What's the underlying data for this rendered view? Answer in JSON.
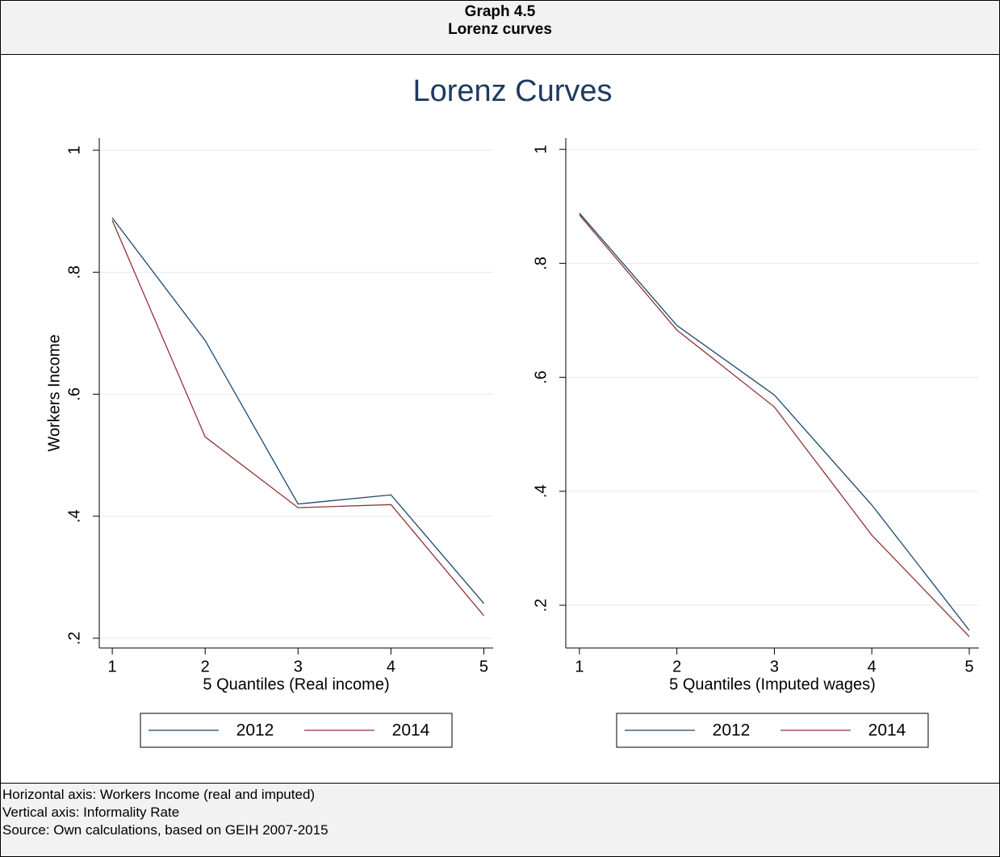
{
  "header": {
    "number": "Graph 4.5",
    "title": "Lorenz curves"
  },
  "figure_title": "Lorenz Curves",
  "chart_data": [
    {
      "type": "line",
      "ylabel": "Workers Income",
      "xlabel": "5 Quantiles (Real income)",
      "x": [
        1,
        2,
        3,
        4,
        5
      ],
      "series": [
        {
          "name": "2012",
          "color": "#1a476f",
          "values": [
            0.889,
            0.688,
            0.42,
            0.435,
            0.257
          ]
        },
        {
          "name": "2014",
          "color": "#90353b",
          "values": [
            0.885,
            0.53,
            0.414,
            0.419,
            0.237
          ]
        }
      ],
      "xlim": [
        0.86,
        5.1
      ],
      "xticks": [
        1,
        2,
        3,
        4,
        5
      ],
      "ylim": [
        0.184,
        1.02
      ],
      "yticks": [
        {
          "value": 0.2,
          "label": ".2"
        },
        {
          "value": 0.4,
          "label": ".4"
        },
        {
          "value": 0.6,
          "label": ".6"
        },
        {
          "value": 0.8,
          "label": ".8"
        },
        1
      ],
      "grid": true,
      "legend": "bottom"
    },
    {
      "type": "line",
      "xlabel": "5 Quantiles (Imputed wages)",
      "x": [
        1,
        2,
        3,
        4,
        5
      ],
      "series": [
        {
          "name": "2012",
          "color": "#1a476f",
          "values": [
            0.888,
            0.691,
            0.569,
            0.376,
            0.156
          ]
        },
        {
          "name": "2014",
          "color": "#90353b",
          "values": [
            0.885,
            0.683,
            0.548,
            0.323,
            0.145
          ]
        }
      ],
      "xlim": [
        0.86,
        5.1
      ],
      "xticks": [
        1,
        2,
        3,
        4,
        5
      ],
      "ylim": [
        0.125,
        1.02
      ],
      "yticks": [
        {
          "value": 0.2,
          "label": ".2"
        },
        {
          "value": 0.4,
          "label": ".4"
        },
        {
          "value": 0.6,
          "label": ".6"
        },
        {
          "value": 0.8,
          "label": ".8"
        },
        1
      ],
      "grid": true,
      "legend": "bottom"
    }
  ],
  "notes": [
    "Horizontal axis: Workers Income (real and imputed)",
    "Vertical axis: Informality Rate",
    "Source: Own calculations, based on GEIH 2007-2015"
  ]
}
